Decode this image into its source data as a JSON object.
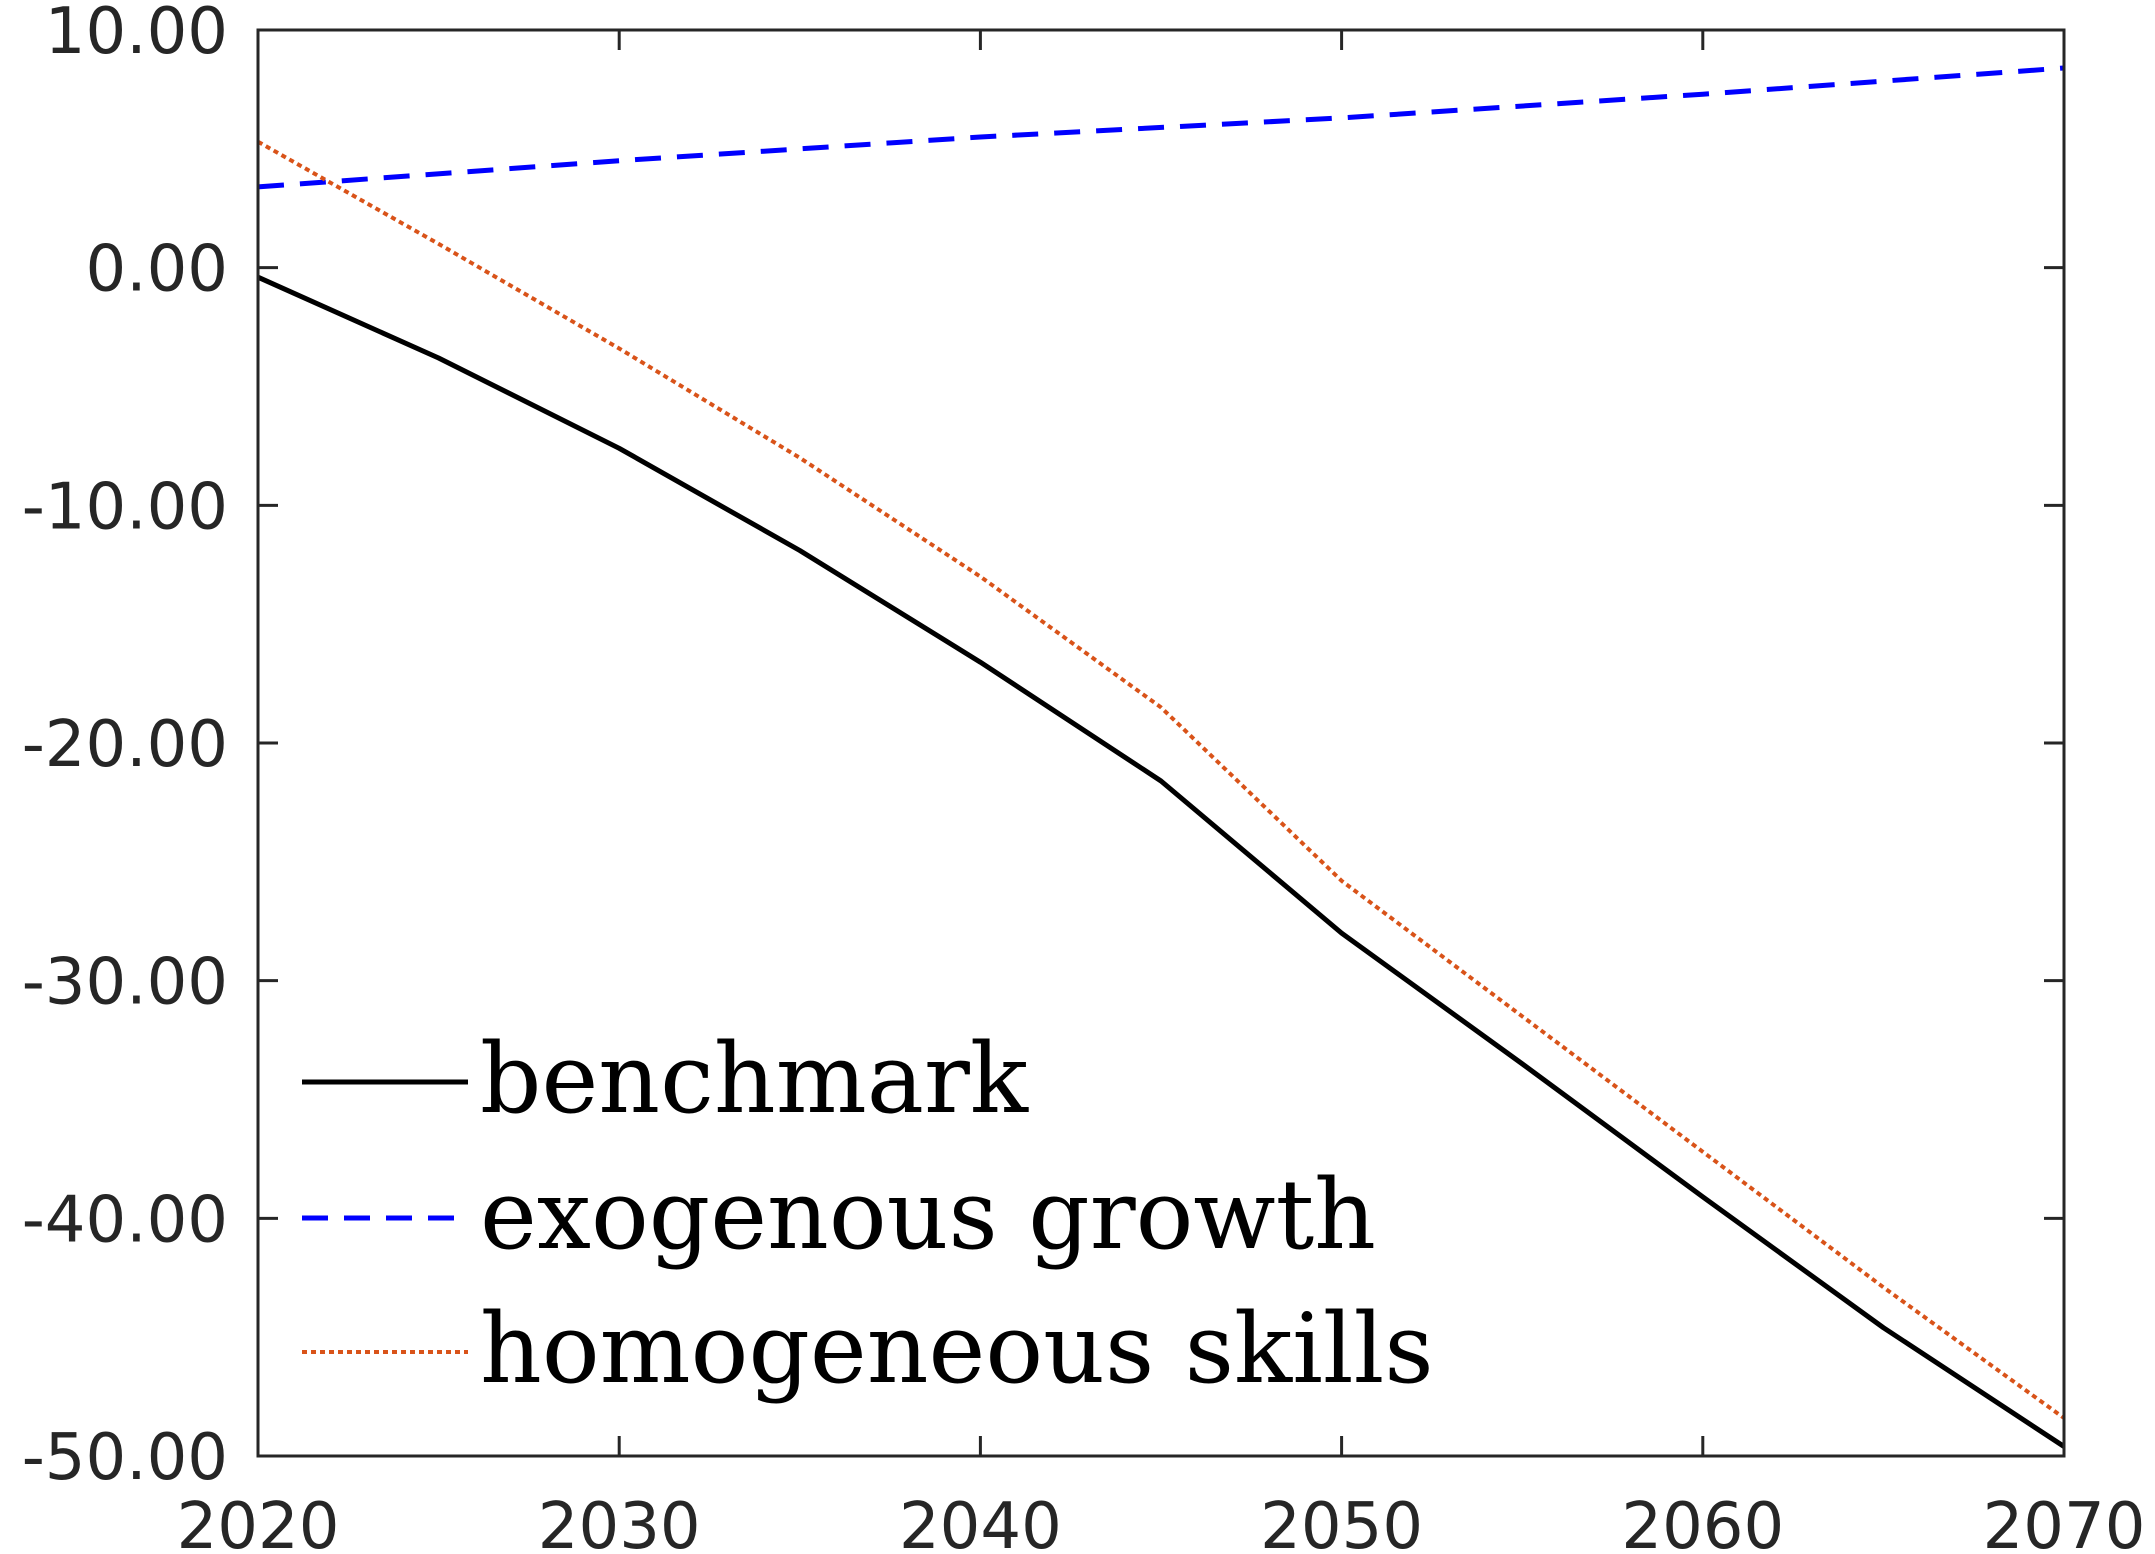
{
  "chart_data": {
    "type": "line",
    "title": "",
    "xlabel": "",
    "ylabel": "",
    "xlim": [
      2020,
      2070
    ],
    "ylim": [
      -50,
      10
    ],
    "xticks": [
      2020,
      2030,
      2040,
      2050,
      2060,
      2070
    ],
    "yticks": [
      10,
      0,
      -10,
      -20,
      -30,
      -40,
      -50
    ],
    "xtick_labels": [
      "2020",
      "2030",
      "2040",
      "2050",
      "2060",
      "2070"
    ],
    "ytick_labels": [
      "10.00",
      "0.00",
      "-10.00",
      "-20.00",
      "-30.00",
      "-40.00",
      "-50.00"
    ],
    "grid": false,
    "legend_position": "bottom-left",
    "series": [
      {
        "name": "benchmark",
        "color": "#000000",
        "style": "solid",
        "x": [
          2020,
          2025,
          2030,
          2035,
          2040,
          2045,
          2050,
          2055,
          2060,
          2065,
          2070
        ],
        "values": [
          -0.4,
          -3.8,
          -7.6,
          -11.9,
          -16.6,
          -21.6,
          -28.0,
          -33.5,
          -39.1,
          -44.6,
          -49.6
        ]
      },
      {
        "name": "exogenous growth",
        "color": "#0000ff",
        "style": "dashed",
        "x": [
          2020,
          2030,
          2040,
          2050,
          2060,
          2070
        ],
        "values": [
          3.4,
          4.5,
          5.5,
          6.3,
          7.3,
          8.4
        ]
      },
      {
        "name": "homogeneous skills",
        "color": "#d95319",
        "style": "dotted",
        "x": [
          2020,
          2025,
          2030,
          2035,
          2040,
          2045,
          2050,
          2055,
          2060,
          2065,
          2070
        ],
        "values": [
          5.3,
          1.0,
          -3.4,
          -8.0,
          -13.0,
          -18.5,
          -25.8,
          -31.5,
          -37.2,
          -42.9,
          -48.4
        ]
      }
    ]
  }
}
